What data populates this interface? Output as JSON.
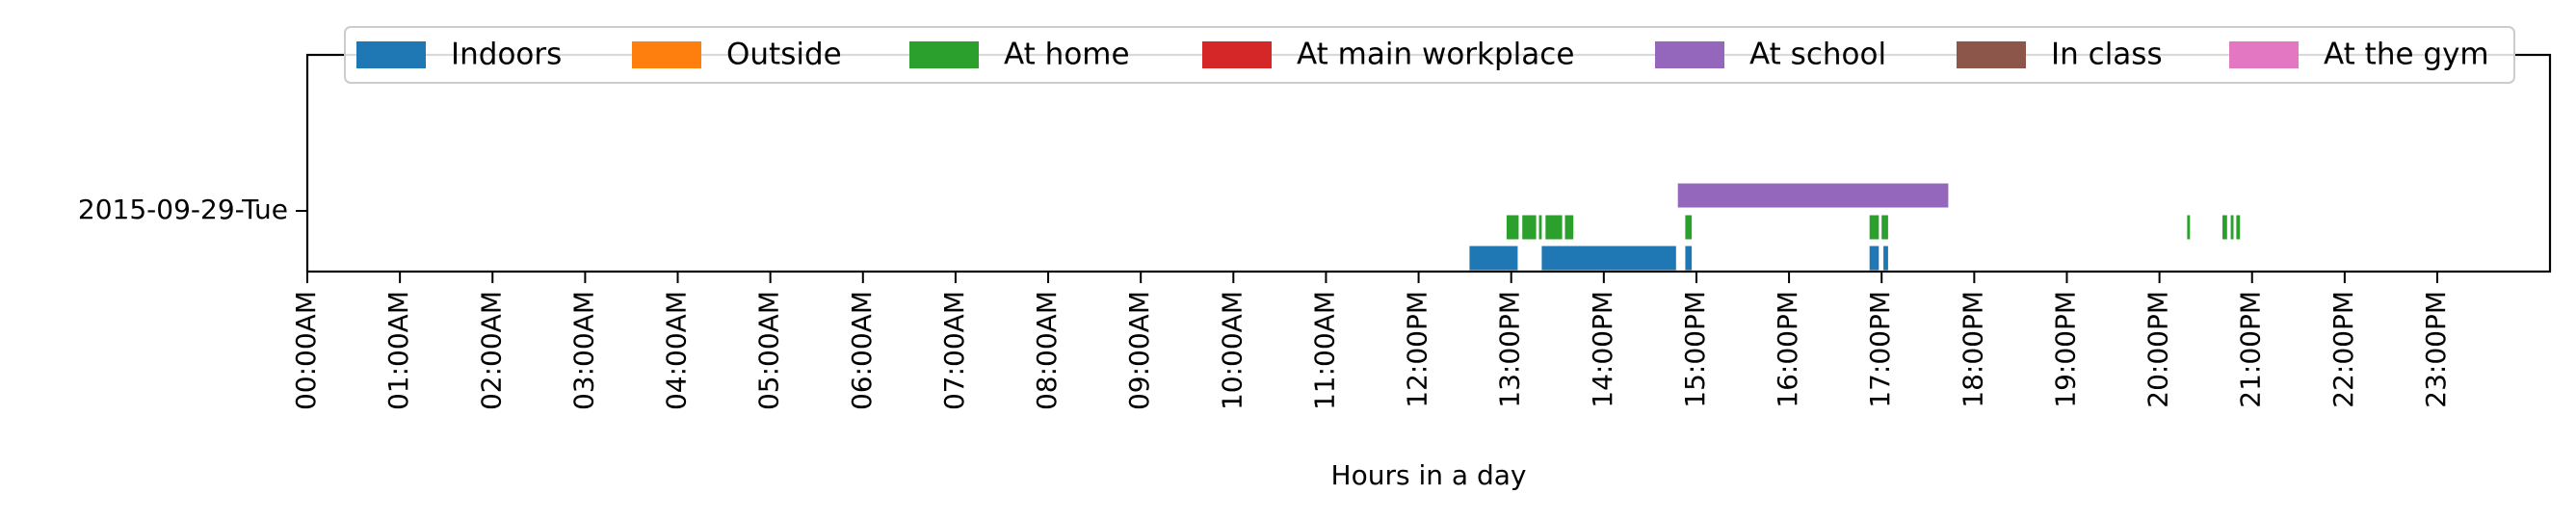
{
  "chart_data": {
    "type": "timeline",
    "title": "",
    "xlabel": "Hours in a day",
    "ylabel": "",
    "xlim": [
      0,
      24
    ],
    "x_ticks": [
      "00:00AM",
      "01:00AM",
      "02:00AM",
      "03:00AM",
      "04:00AM",
      "05:00AM",
      "06:00AM",
      "07:00AM",
      "08:00AM",
      "09:00AM",
      "10:00AM",
      "11:00AM",
      "12:00PM",
      "13:00PM",
      "14:00PM",
      "15:00PM",
      "16:00PM",
      "17:00PM",
      "18:00PM",
      "19:00PM",
      "20:00PM",
      "21:00PM",
      "22:00PM",
      "23:00PM"
    ],
    "y_ticks": [
      "2015-09-29-Tue"
    ],
    "legend_position": "top",
    "series": [
      {
        "name": "Indoors",
        "color": "#1f77b4",
        "intervals": [
          [
            12.55,
            13.07
          ],
          [
            13.33,
            14.78
          ],
          [
            14.88,
            14.95
          ],
          [
            16.87,
            16.97
          ],
          [
            17.02,
            17.07
          ]
        ]
      },
      {
        "name": "Outside",
        "color": "#ff7f0e",
        "intervals": []
      },
      {
        "name": "At home",
        "color": "#2ca02c",
        "intervals": [
          [
            12.95,
            13.08
          ],
          [
            13.12,
            13.27
          ],
          [
            13.3,
            13.33
          ],
          [
            13.37,
            13.55
          ],
          [
            13.58,
            13.67
          ],
          [
            14.88,
            14.95
          ],
          [
            16.87,
            16.97
          ],
          [
            17.0,
            17.07
          ],
          [
            20.3,
            20.33
          ],
          [
            20.68,
            20.73
          ],
          [
            20.77,
            20.8
          ],
          [
            20.83,
            20.87
          ]
        ]
      },
      {
        "name": "At main workplace",
        "color": "#d62728",
        "intervals": []
      },
      {
        "name": "At school",
        "color": "#9467bd",
        "intervals": [
          [
            14.8,
            17.72
          ]
        ]
      },
      {
        "name": "In class",
        "color": "#8c564b",
        "intervals": []
      },
      {
        "name": "At the gym",
        "color": "#e377c2",
        "intervals": []
      }
    ]
  }
}
